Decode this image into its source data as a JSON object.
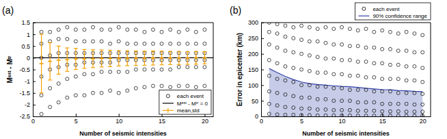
{
  "chart_data": [
    {
      "type": "scatter",
      "title": "(a)",
      "xlabel": "Number of seismic intensities",
      "ylabel": "Mᵉˢᵗ - Mᵗʳ",
      "xlim": [
        0,
        21
      ],
      "xticks": [
        0,
        5,
        10,
        15,
        20
      ],
      "ylim": [
        -2.5,
        1.5
      ],
      "yticks": [
        -2.5,
        -2,
        -1.5,
        -1,
        -0.5,
        0,
        0.5,
        1,
        1.5
      ],
      "grid": false,
      "legend": "lower right",
      "series": [
        {
          "name": "each event",
          "type": "scatter",
          "marker": "circle",
          "color": "#000000",
          "x": [
            1,
            1,
            1,
            1,
            1,
            1,
            2,
            2,
            2,
            2,
            2,
            2,
            3,
            3,
            3,
            3,
            3,
            3,
            4,
            4,
            4,
            4,
            4,
            4,
            5,
            5,
            5,
            5,
            5,
            5,
            6,
            6,
            6,
            6,
            6,
            6,
            7,
            7,
            7,
            7,
            7,
            7,
            8,
            8,
            8,
            8,
            8,
            8,
            9,
            9,
            9,
            9,
            9,
            9,
            10,
            10,
            10,
            10,
            10,
            10,
            11,
            11,
            11,
            11,
            11,
            11,
            12,
            12,
            12,
            12,
            12,
            12,
            13,
            13,
            13,
            13,
            13,
            13,
            14,
            14,
            14,
            14,
            14,
            14,
            15,
            15,
            15,
            15,
            15,
            15,
            16,
            16,
            16,
            16,
            16,
            16,
            17,
            17,
            17,
            17,
            17,
            17,
            18,
            18,
            18,
            18,
            18,
            18,
            19,
            19,
            19,
            19,
            19,
            19,
            20,
            20,
            20,
            20,
            20,
            20
          ],
          "values": [
            -2.4,
            -1.6,
            -0.8,
            0,
            0.6,
            1.1,
            -2.1,
            -1.3,
            -0.5,
            0.1,
            0.7,
            1.1,
            -1.9,
            -1.1,
            -0.4,
            0.2,
            0.8,
            1.2,
            -1.7,
            -0.9,
            -0.3,
            0.2,
            0.8,
            1.3,
            -1.6,
            -0.8,
            -0.3,
            0.2,
            0.7,
            1.2,
            -1.6,
            -0.7,
            -0.2,
            0.2,
            0.7,
            1.2,
            -1.5,
            -0.7,
            -0.2,
            0.2,
            0.7,
            1.3,
            -1.5,
            -0.6,
            -0.2,
            0.2,
            0.7,
            1.2,
            -1.4,
            -0.6,
            -0.2,
            0.2,
            0.6,
            1.2,
            -1.5,
            -0.6,
            -0.1,
            0.2,
            0.7,
            1.3,
            -1.4,
            -0.6,
            -0.1,
            0.2,
            0.6,
            1.2,
            -1.3,
            -0.5,
            -0.1,
            0.2,
            0.6,
            1.2,
            -1.25,
            -0.5,
            -0.1,
            0.2,
            0.6,
            1.1,
            -1.2,
            -0.5,
            -0.1,
            0.2,
            0.6,
            1.2,
            -1.2,
            -0.5,
            -0.1,
            0.2,
            0.6,
            1.1,
            -1.25,
            -0.5,
            -0.1,
            0.2,
            0.6,
            1.2,
            -1.2,
            -0.4,
            -0.1,
            0.2,
            0.6,
            1.1,
            -1.2,
            -0.4,
            -0.1,
            0.2,
            0.6,
            1.2,
            -1.25,
            -0.4,
            -0.1,
            0.2,
            0.6,
            1.1,
            -1.2,
            -0.4,
            -0.1,
            0.2,
            0.6,
            1.2
          ]
        },
        {
          "name": "Mᵉˢᵗ - Mᵗʳ = 0",
          "type": "line",
          "line_style": "solid",
          "color": "#000000",
          "x": [
            0,
            21
          ],
          "values": [
            0,
            0
          ]
        },
        {
          "name": "mean,std",
          "type": "errorbar",
          "color": "#f5a000",
          "x": [
            1,
            2,
            3,
            4,
            5,
            6,
            7,
            8,
            9,
            10,
            11,
            12,
            13,
            14,
            15,
            16,
            17,
            18,
            19,
            20
          ],
          "values": [
            -0.25,
            -0.15,
            -0.1,
            -0.08,
            -0.05,
            -0.05,
            -0.04,
            -0.03,
            -0.03,
            -0.02,
            -0.02,
            -0.02,
            -0.02,
            -0.01,
            -0.01,
            -0.01,
            -0.01,
            -0.01,
            0,
            0
          ],
          "error": [
            1.25,
            0.8,
            0.6,
            0.5,
            0.45,
            0.4,
            0.38,
            0.36,
            0.35,
            0.33,
            0.32,
            0.31,
            0.3,
            0.3,
            0.29,
            0.28,
            0.28,
            0.27,
            0.27,
            0.26
          ]
        }
      ]
    },
    {
      "type": "scatter",
      "title": "(b)",
      "xlabel": "Number of seismic intensities",
      "ylabel": "Error in epicenter (km)",
      "xlim": [
        0,
        21
      ],
      "xticks": [
        0,
        5,
        10,
        15,
        20
      ],
      "ylim": [
        0,
        300
      ],
      "yticks": [
        0,
        50,
        100,
        150,
        200,
        250,
        300
      ],
      "grid": false,
      "legend": "upper right",
      "series": [
        {
          "name": "each event",
          "type": "scatter",
          "marker": "circle",
          "color": "#000000",
          "x": [
            1,
            1,
            1,
            1,
            1,
            1,
            1,
            1,
            2,
            2,
            2,
            2,
            2,
            2,
            2,
            2,
            3,
            3,
            3,
            3,
            3,
            3,
            3,
            3,
            4,
            4,
            4,
            4,
            4,
            4,
            4,
            4,
            5,
            5,
            5,
            5,
            5,
            5,
            5,
            5,
            6,
            6,
            6,
            6,
            6,
            6,
            6,
            6,
            7,
            7,
            7,
            7,
            7,
            7,
            7,
            7,
            8,
            8,
            8,
            8,
            8,
            8,
            8,
            8,
            9,
            9,
            9,
            9,
            9,
            9,
            9,
            9,
            10,
            10,
            10,
            10,
            10,
            10,
            10,
            10,
            11,
            11,
            11,
            11,
            11,
            11,
            11,
            11,
            12,
            12,
            12,
            12,
            12,
            12,
            12,
            12,
            13,
            13,
            13,
            13,
            13,
            13,
            13,
            13,
            14,
            14,
            14,
            14,
            14,
            14,
            14,
            14,
            15,
            15,
            15,
            15,
            15,
            15,
            15,
            15,
            16,
            16,
            16,
            16,
            16,
            16,
            16,
            16,
            17,
            17,
            17,
            17,
            17,
            17,
            17,
            17,
            18,
            18,
            18,
            18,
            18,
            18,
            18,
            18,
            19,
            19,
            19,
            19,
            19,
            19,
            19,
            19,
            20,
            20,
            20,
            20,
            20,
            20,
            20,
            20
          ],
          "values": [
            8,
            40,
            80,
            130,
            180,
            230,
            270,
            300,
            6,
            35,
            75,
            120,
            170,
            220,
            265,
            295,
            5,
            30,
            70,
            115,
            160,
            210,
            255,
            290,
            5,
            28,
            65,
            110,
            155,
            205,
            250,
            285,
            4,
            25,
            60,
            100,
            150,
            200,
            245,
            290,
            4,
            25,
            60,
            100,
            145,
            195,
            240,
            285,
            3,
            22,
            55,
            95,
            140,
            190,
            240,
            280,
            3,
            22,
            55,
            95,
            140,
            185,
            235,
            285,
            3,
            20,
            50,
            90,
            135,
            185,
            230,
            280,
            3,
            20,
            50,
            90,
            135,
            180,
            230,
            285,
            3,
            20,
            50,
            85,
            130,
            180,
            225,
            280,
            2,
            18,
            45,
            85,
            130,
            175,
            225,
            275,
            2,
            18,
            45,
            85,
            125,
            175,
            220,
            280,
            2,
            18,
            45,
            80,
            125,
            170,
            220,
            270,
            2,
            16,
            40,
            80,
            120,
            170,
            215,
            275,
            2,
            16,
            40,
            80,
            120,
            165,
            215,
            270,
            2,
            16,
            40,
            75,
            120,
            165,
            210,
            265,
            2,
            15,
            40,
            75,
            115,
            160,
            210,
            270,
            2,
            15,
            38,
            75,
            115,
            160,
            205,
            265,
            2,
            15,
            38,
            72,
            110,
            155,
            205,
            260
          ]
        },
        {
          "name": "90% confidence range",
          "type": "area",
          "color": "#3344aa",
          "x": [
            1,
            2,
            3,
            4,
            5,
            6,
            7,
            8,
            9,
            10,
            11,
            12,
            13,
            14,
            15,
            16,
            17,
            18,
            19,
            20
          ],
          "values": [
            153,
            140,
            128,
            118,
            110,
            105,
            102,
            100,
            98,
            96,
            95,
            93,
            90,
            88,
            86,
            85,
            83,
            82,
            80,
            79
          ]
        }
      ]
    }
  ]
}
